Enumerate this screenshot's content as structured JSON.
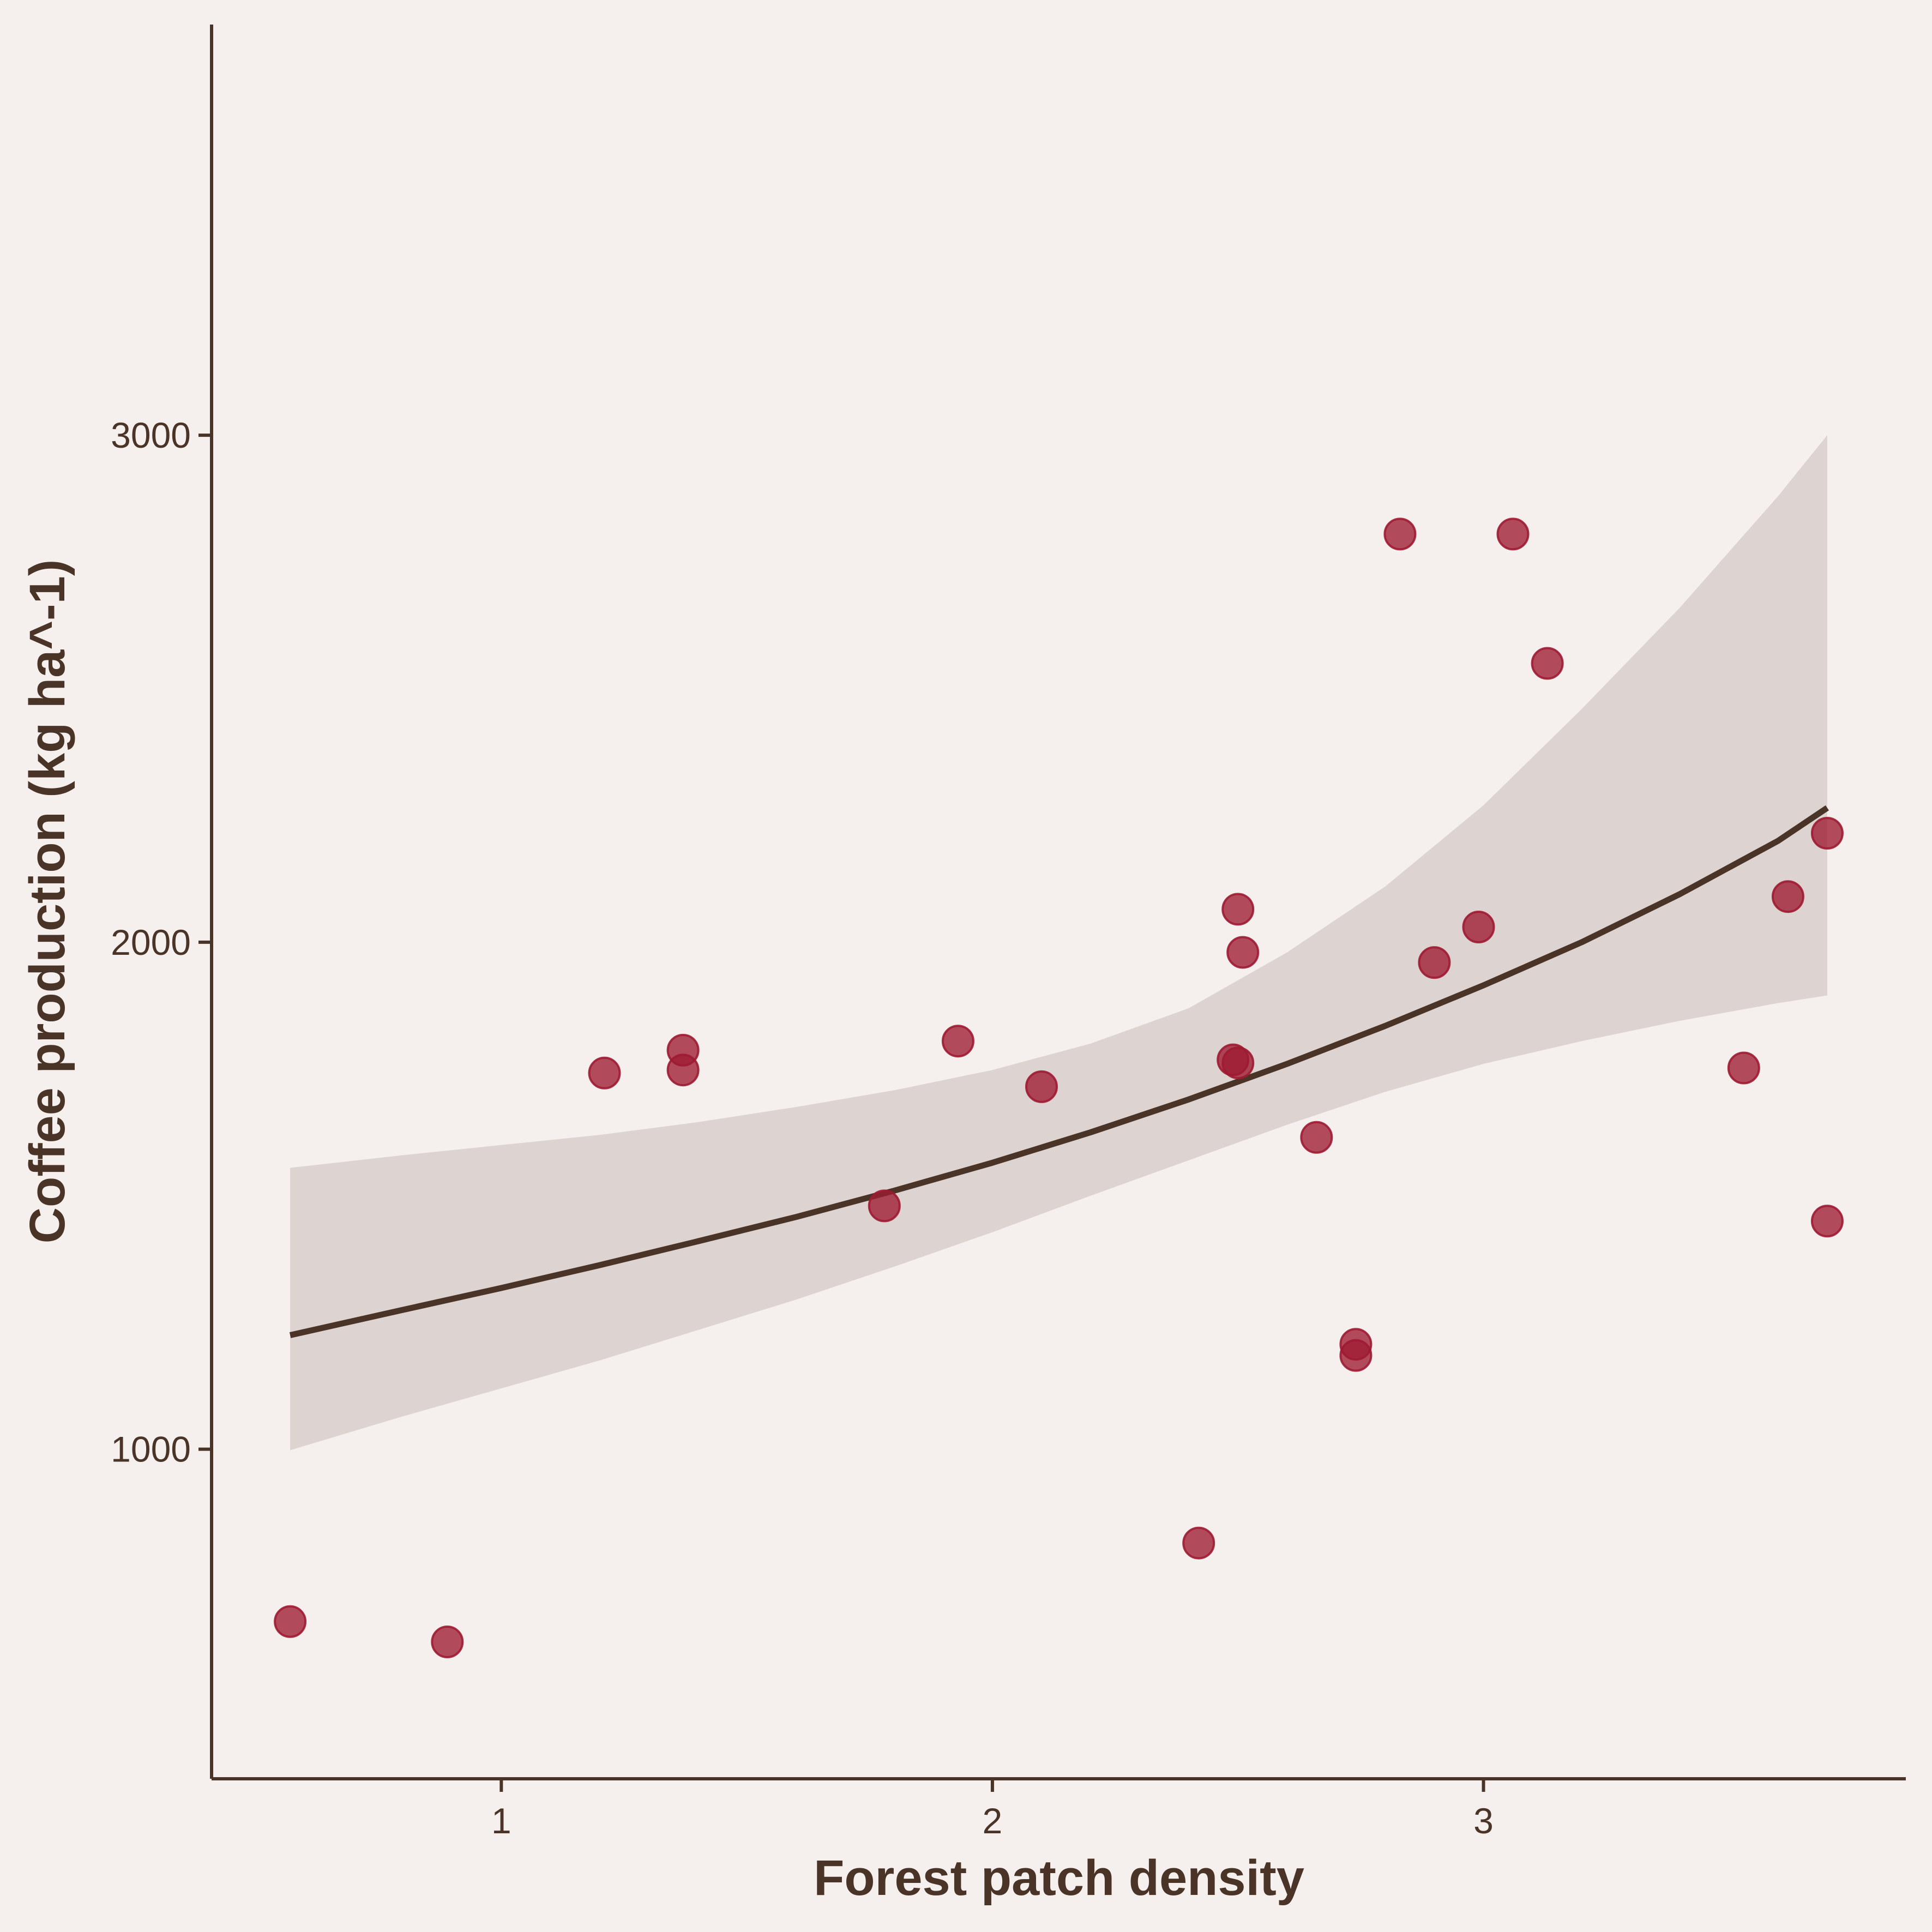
{
  "chart_data": {
    "type": "scatter",
    "title": "",
    "xlabel": "Forest patch density",
    "ylabel": "Coffee production (kg ha^-1)",
    "xlim": [
      0.41,
      3.86
    ],
    "ylim": [
      350,
      3810
    ],
    "x_ticks": [
      1,
      2,
      3
    ],
    "y_ticks": [
      1000,
      2000,
      3000
    ],
    "x_tick_labels": [
      "1",
      "2",
      "3"
    ],
    "y_tick_labels": [
      "1000",
      "2000",
      "3000"
    ],
    "grid": false,
    "legend": "none",
    "colors": {
      "background": "#f5f0ed",
      "points": "#9e1b32",
      "fit_line": "#4a3428",
      "confidence_band": "#ddd3d0",
      "axes": "#4a3428"
    },
    "points": [
      {
        "x": 0.57,
        "y": 660
      },
      {
        "x": 0.89,
        "y": 620
      },
      {
        "x": 1.21,
        "y": 1742
      },
      {
        "x": 1.37,
        "y": 1748
      },
      {
        "x": 1.37,
        "y": 1787
      },
      {
        "x": 1.78,
        "y": 1480
      },
      {
        "x": 1.93,
        "y": 1805
      },
      {
        "x": 2.1,
        "y": 1715
      },
      {
        "x": 2.42,
        "y": 815
      },
      {
        "x": 2.49,
        "y": 1768
      },
      {
        "x": 2.5,
        "y": 1762
      },
      {
        "x": 2.5,
        "y": 2065
      },
      {
        "x": 2.51,
        "y": 1980
      },
      {
        "x": 2.66,
        "y": 1615
      },
      {
        "x": 2.74,
        "y": 1207
      },
      {
        "x": 2.74,
        "y": 1185
      },
      {
        "x": 2.83,
        "y": 2805
      },
      {
        "x": 2.9,
        "y": 1960
      },
      {
        "x": 2.99,
        "y": 2030
      },
      {
        "x": 3.06,
        "y": 2805
      },
      {
        "x": 3.13,
        "y": 2550
      },
      {
        "x": 3.53,
        "y": 1752
      },
      {
        "x": 3.62,
        "y": 2090
      },
      {
        "x": 3.7,
        "y": 2215
      },
      {
        "x": 3.7,
        "y": 1450
      }
    ],
    "fit": {
      "x": [
        0.57,
        0.8,
        1.0,
        1.2,
        1.4,
        1.6,
        1.8,
        2.0,
        2.2,
        2.4,
        2.6,
        2.8,
        3.0,
        3.2,
        3.4,
        3.6,
        3.7
      ],
      "y": [
        1225,
        1275,
        1318,
        1363,
        1410,
        1458,
        1510,
        1565,
        1625,
        1690,
        1760,
        1835,
        1915,
        2000,
        2095,
        2200,
        2265
      ],
      "lower": [
        998,
        1065,
        1120,
        1175,
        1235,
        1295,
        1360,
        1428,
        1500,
        1570,
        1640,
        1705,
        1760,
        1805,
        1845,
        1880,
        1895
      ],
      "upper": [
        1555,
        1580,
        1600,
        1620,
        1645,
        1675,
        1708,
        1748,
        1800,
        1870,
        1980,
        2110,
        2270,
        2460,
        2660,
        2880,
        3000
      ]
    }
  }
}
